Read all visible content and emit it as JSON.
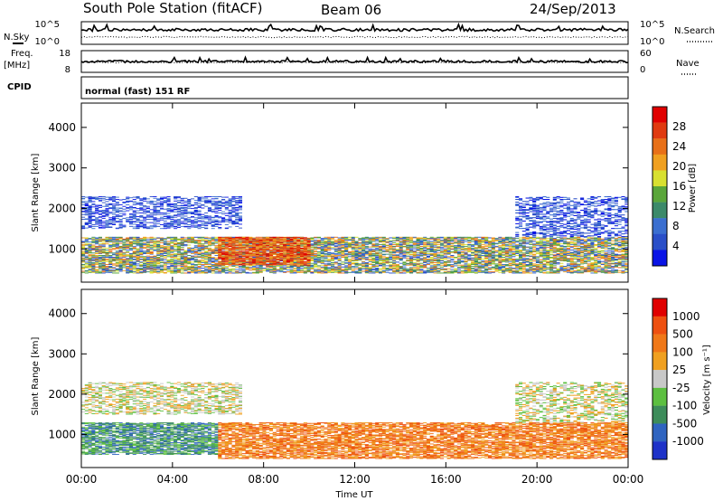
{
  "header": {
    "station": "South Pole Station (fitACF)",
    "beam": "Beam 06",
    "date": "24/Sep/2013"
  },
  "top_panels": {
    "nsky_label": "N.Sky",
    "nsky_ticks": [
      "10^5",
      "10^0"
    ],
    "nsearch_label": "N.Search",
    "nsearch_ticks": [
      "10^5",
      "10^0"
    ],
    "freq_label": "Freq.",
    "freq_unit": "[MHz]",
    "freq_ticks": [
      "18",
      "8"
    ],
    "nave_label": "Nave",
    "nave_ticks": [
      "60",
      "0"
    ],
    "cpid_label": "CPID",
    "cpid_value": "normal (fast) 151 RF"
  },
  "chart_data": [
    {
      "type": "heatmap",
      "name": "power",
      "ylabel": "Slant Range [km]",
      "xlabel": "",
      "ylim": [
        180,
        4600
      ],
      "xlim": [
        0,
        24
      ],
      "y_ticks": [
        "1000",
        "2000",
        "3000",
        "4000"
      ],
      "colorbar": {
        "label": "Power [dB]",
        "ticks": [
          "28",
          "24",
          "20",
          "16",
          "12",
          "8",
          "4"
        ],
        "colors": [
          "#0a14e6",
          "#2a4fc8",
          "#3b6fd0",
          "#3c8a6a",
          "#5aa63a",
          "#d8e030",
          "#f0a020",
          "#e87018",
          "#e03a10",
          "#e00000"
        ]
      },
      "echo_bands": [
        {
          "hours": [
            0,
            24
          ],
          "range_km": [
            400,
            1300
          ],
          "level": "medium"
        },
        {
          "hours": [
            6,
            10
          ],
          "range_km": [
            600,
            1300
          ],
          "level": "high"
        },
        {
          "hours": [
            0,
            7
          ],
          "range_km": [
            1500,
            2300
          ],
          "level": "low"
        },
        {
          "hours": [
            19,
            24
          ],
          "range_km": [
            1300,
            2300
          ],
          "level": "low"
        }
      ]
    },
    {
      "type": "heatmap",
      "name": "velocity",
      "ylabel": "Slant Range [km]",
      "xlabel": "Time UT",
      "ylim": [
        180,
        4600
      ],
      "xlim": [
        0,
        24
      ],
      "y_ticks": [
        "1000",
        "2000",
        "3000",
        "4000"
      ],
      "x_ticks": [
        "00:00",
        "04:00",
        "08:00",
        "12:00",
        "16:00",
        "20:00",
        "00:00"
      ],
      "colorbar": {
        "label": "Velocity [m s⁻¹]",
        "ticks": [
          "1000",
          "500",
          "100",
          "25",
          "-25",
          "-100",
          "-500",
          "-1000"
        ],
        "colors": [
          "#1e32c8",
          "#2f64c0",
          "#3d8c5a",
          "#5cbf40",
          "#c8c8c8",
          "#f0a020",
          "#f07818",
          "#ee5010",
          "#e00000"
        ]
      },
      "echo_bands": [
        {
          "hours": [
            0,
            6
          ],
          "range_km": [
            500,
            1300
          ],
          "level": "positive"
        },
        {
          "hours": [
            6,
            24
          ],
          "range_km": [
            400,
            1300
          ],
          "level": "negative"
        },
        {
          "hours": [
            0,
            7
          ],
          "range_km": [
            1500,
            2300
          ],
          "level": "near-zero"
        },
        {
          "hours": [
            19,
            24
          ],
          "range_km": [
            1300,
            2300
          ],
          "level": "near-zero"
        }
      ]
    }
  ]
}
